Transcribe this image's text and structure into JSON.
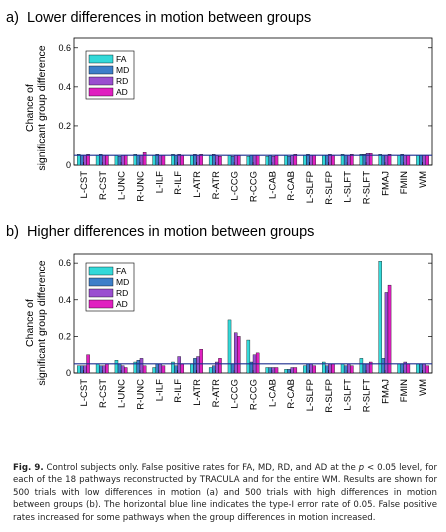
{
  "chart_data": [
    {
      "type": "bar",
      "panel_label": "a)",
      "title": "Lower differences in motion between groups",
      "ylabel": [
        "Chance of",
        "significant group difference"
      ],
      "ylim": [
        0,
        0.65
      ],
      "yticks": [
        "0",
        "0.2",
        "0.4",
        "0.6"
      ],
      "threshold": 0.05,
      "legend_position": "top-left",
      "categories": [
        "L-CST",
        "R-CST",
        "L-UNC",
        "R-UNC",
        "L-ILF",
        "R-ILF",
        "L-ATR",
        "R-ATR",
        "L-CCG",
        "R-CCG",
        "L-CAB",
        "R-CAB",
        "L-SLFP",
        "R-SLFP",
        "L-SLFT",
        "R-SLFT",
        "FMAJ",
        "FMIN",
        "WM"
      ],
      "series": [
        {
          "name": "FA",
          "color": "#33d9d9",
          "values": [
            0.055,
            0.05,
            0.05,
            0.055,
            0.05,
            0.055,
            0.05,
            0.05,
            0.05,
            0.045,
            0.045,
            0.05,
            0.05,
            0.05,
            0.055,
            0.055,
            0.055,
            0.05,
            0.05
          ]
        },
        {
          "name": "MD",
          "color": "#3d7fc9",
          "values": [
            0.05,
            0.055,
            0.045,
            0.05,
            0.055,
            0.05,
            0.055,
            0.055,
            0.045,
            0.05,
            0.05,
            0.045,
            0.055,
            0.05,
            0.05,
            0.055,
            0.05,
            0.055,
            0.05
          ]
        },
        {
          "name": "RD",
          "color": "#9a4fd0",
          "values": [
            0.05,
            0.05,
            0.05,
            0.05,
            0.05,
            0.055,
            0.05,
            0.05,
            0.05,
            0.05,
            0.045,
            0.05,
            0.05,
            0.055,
            0.05,
            0.06,
            0.05,
            0.05,
            0.05
          ]
        },
        {
          "name": "AD",
          "color": "#e020c0",
          "values": [
            0.055,
            0.05,
            0.05,
            0.065,
            0.05,
            0.05,
            0.055,
            0.045,
            0.05,
            0.05,
            0.05,
            0.055,
            0.05,
            0.05,
            0.055,
            0.06,
            0.055,
            0.05,
            0.05
          ]
        }
      ]
    },
    {
      "type": "bar",
      "panel_label": "b)",
      "title": "Higher differences in motion between groups",
      "ylabel": [
        "Chance of",
        "significant group difference"
      ],
      "ylim": [
        0,
        0.65
      ],
      "yticks": [
        "0",
        "0.2",
        "0.4",
        "0.6"
      ],
      "threshold": 0.05,
      "legend_position": "top-right",
      "categories": [
        "L-CST",
        "R-CST",
        "L-UNC",
        "R-UNC",
        "L-ILF",
        "R-ILF",
        "L-ATR",
        "R-ATR",
        "L-CCG",
        "R-CCG",
        "L-CAB",
        "R-CAB",
        "L-SLFP",
        "R-SLFP",
        "L-SLFT",
        "R-SLFT",
        "FMAJ",
        "FMIN",
        "WM"
      ],
      "series": [
        {
          "name": "FA",
          "color": "#33d9d9",
          "values": [
            0.04,
            0.05,
            0.07,
            0.06,
            0.03,
            0.06,
            0.05,
            0.03,
            0.29,
            0.18,
            0.03,
            0.02,
            0.04,
            0.06,
            0.05,
            0.08,
            0.61,
            0.05,
            0.05
          ]
        },
        {
          "name": "MD",
          "color": "#3d7fc9",
          "values": [
            0.04,
            0.04,
            0.05,
            0.07,
            0.05,
            0.04,
            0.08,
            0.04,
            0.05,
            0.06,
            0.03,
            0.02,
            0.05,
            0.04,
            0.04,
            0.05,
            0.08,
            0.05,
            0.05
          ]
        },
        {
          "name": "RD",
          "color": "#9a4fd0",
          "values": [
            0.04,
            0.04,
            0.04,
            0.08,
            0.05,
            0.09,
            0.09,
            0.06,
            0.22,
            0.1,
            0.03,
            0.03,
            0.05,
            0.05,
            0.05,
            0.05,
            0.44,
            0.06,
            0.05
          ]
        },
        {
          "name": "AD",
          "color": "#e020c0",
          "values": [
            0.1,
            0.05,
            0.03,
            0.04,
            0.04,
            0.05,
            0.13,
            0.08,
            0.2,
            0.11,
            0.03,
            0.03,
            0.04,
            0.05,
            0.04,
            0.06,
            0.48,
            0.05,
            0.04
          ]
        }
      ]
    }
  ],
  "caption": {
    "fig_label": "Fig. 9.",
    "text_html": "Control subjects only. False positive rates for FA, MD, RD, and AD at the <i>p</i> &lt; 0.05 level, for each of the 18 pathways reconstructed by TRACULA and for the entire WM. Results are shown for 500 trials with low differences in motion (a) and 500 trials with high differences in motion between groups (b). The horizontal blue line indicates the type-I error rate of 0.05. False positive rates increased for some pathways when the group differences in motion increased."
  },
  "colors": {
    "threshold_line": "#1f2f8f",
    "axes": "#000000"
  }
}
